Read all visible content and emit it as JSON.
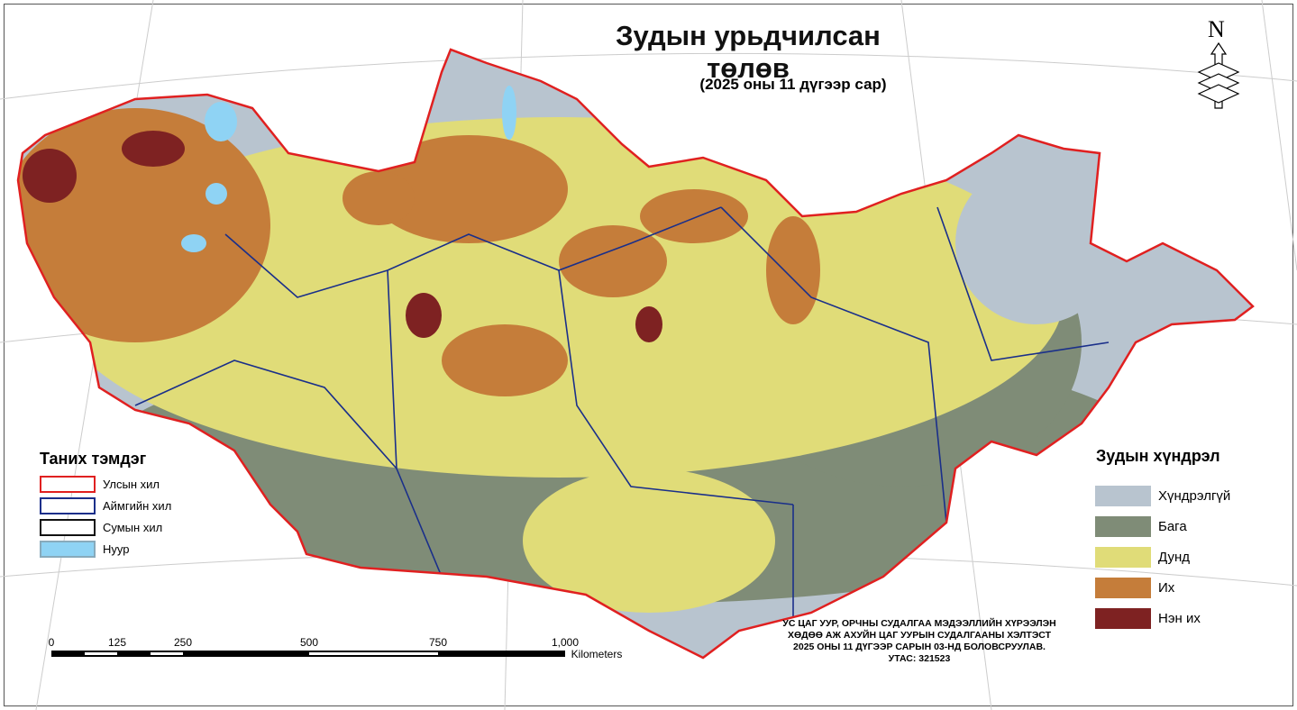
{
  "title": "Зудын урьдчилсан төлөв",
  "subtitle": "(2025 оны 11 дүгээр сар)",
  "north_arrow": "N",
  "left_legend": {
    "title": "Таних тэмдэг",
    "items": [
      {
        "label": "Улсын хил",
        "border": "#e02020",
        "fill": "#ffffff"
      },
      {
        "label": "Аймгийн хил",
        "border": "#1a2f8a",
        "fill": "#ffffff"
      },
      {
        "label": "Сумын хил",
        "border": "#111111",
        "fill": "#ffffff"
      },
      {
        "label": "Нуур",
        "border": "#8ab",
        "fill": "#8fd3f4"
      }
    ]
  },
  "right_legend": {
    "title": "Зудын хүндрэл",
    "items": [
      {
        "label": "Хүндрэлгүй",
        "color": "#b8c4cf"
      },
      {
        "label": "Бага",
        "color": "#7f8c77"
      },
      {
        "label": "Дунд",
        "color": "#e0dc78"
      },
      {
        "label": "Их",
        "color": "#c57d3a"
      },
      {
        "label": "Нэн их",
        "color": "#7e2222"
      }
    ]
  },
  "scale_bar": {
    "labels": [
      "0",
      "125",
      "250",
      "500",
      "750",
      "1,000"
    ],
    "unit": "Kilometers"
  },
  "credits": [
    "УС ЦАГ УУР, ОРЧНЫ СУДАЛГАА МЭДЭЭЛЛИЙН ХҮРЭЭЛЭН",
    "ХӨДӨӨ АЖ АХУЙН ЦАГ УУРЫН СУДАЛГААНЫ ХЭЛТЭСТ",
    "2025 ОНЫ 11 ДҮГЭЭР САРЫН 03-НД БОЛОВСРУУЛАВ.",
    "УТАС: 321523"
  ]
}
